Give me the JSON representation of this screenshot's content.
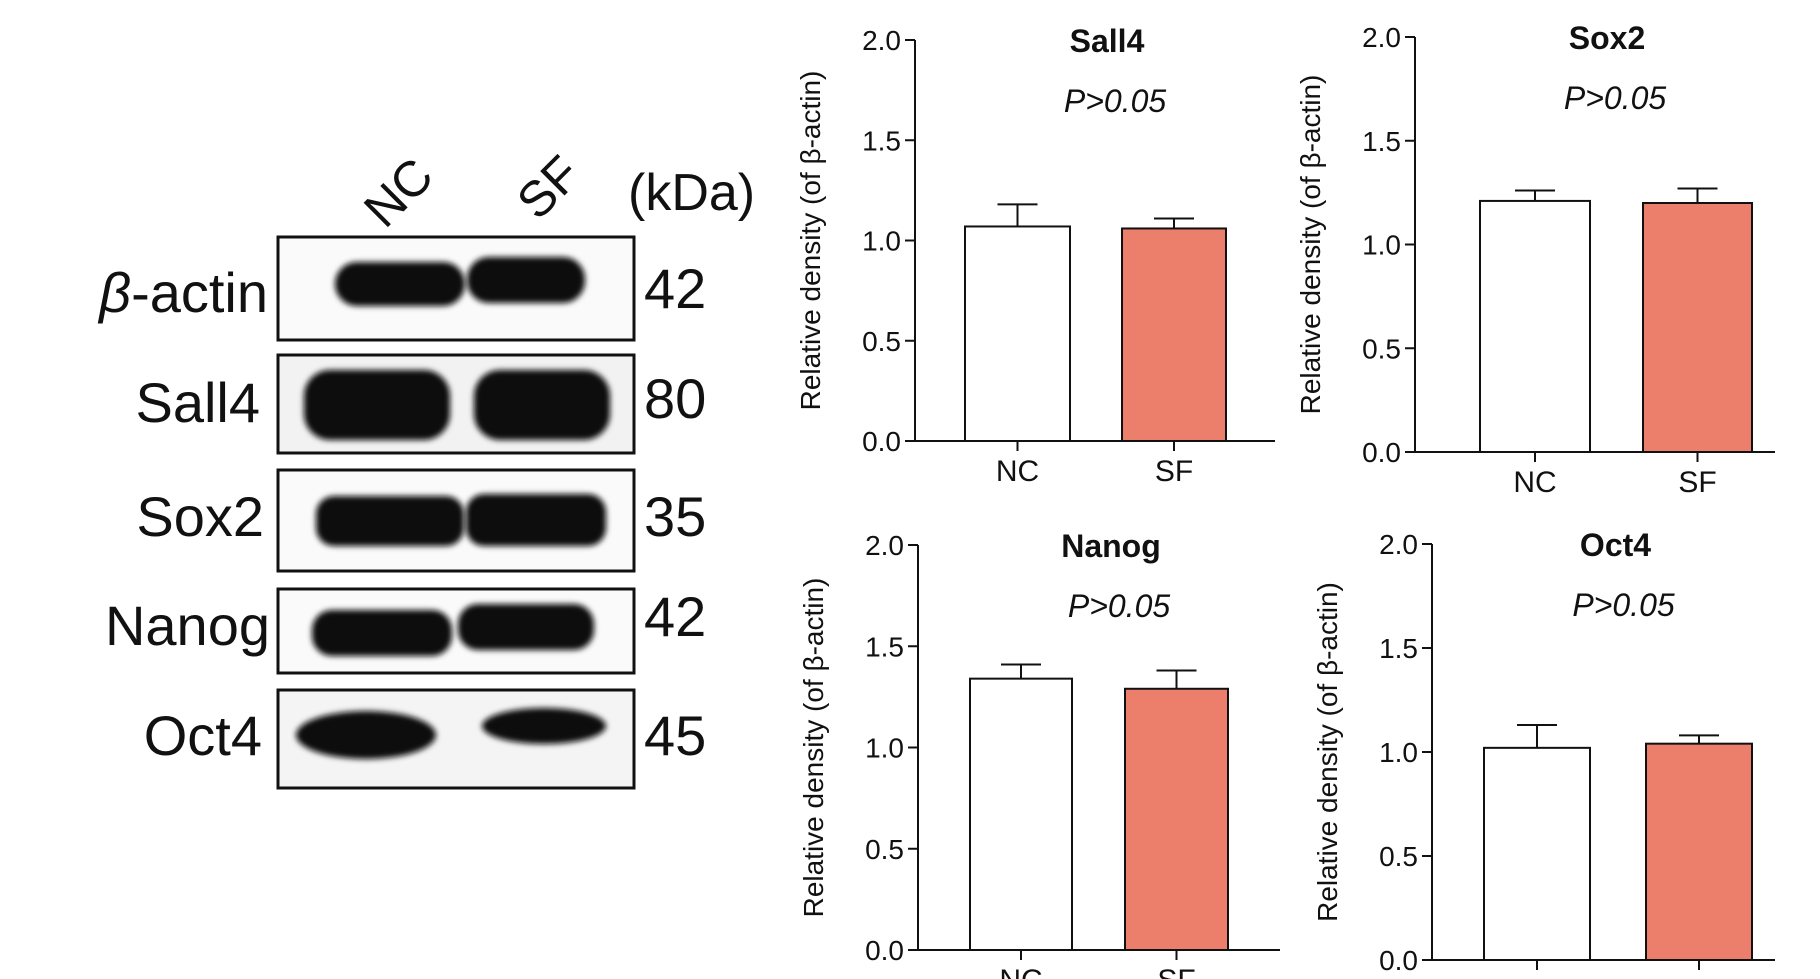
{
  "blot": {
    "columns": [
      "NC",
      "SF"
    ],
    "unit": "(kDa)",
    "rows": [
      {
        "label_pre": "β",
        "label_post": "-actin",
        "kda": "42"
      },
      {
        "label_pre": "",
        "label_post": "Sall4",
        "kda": "80"
      },
      {
        "label_pre": "",
        "label_post": "Sox2",
        "kda": "35"
      },
      {
        "label_pre": "",
        "label_post": "Nanog",
        "kda": "42"
      },
      {
        "label_pre": "",
        "label_post": "Oct4",
        "kda": "45"
      }
    ]
  },
  "chart_data": [
    {
      "type": "bar",
      "title": "Sall4",
      "annotation": "P>0.05",
      "ylabel": "Relative density (of β-actin)",
      "ylim": [
        0,
        2.0
      ],
      "yticks": [
        "0.0",
        "0.5",
        "1.0",
        "1.5",
        "2.0"
      ],
      "categories": [
        "NC",
        "SF"
      ],
      "values": [
        1.07,
        1.06
      ],
      "errors": [
        0.11,
        0.05
      ],
      "colors": [
        "#ffffff",
        "#ec7f6c"
      ]
    },
    {
      "type": "bar",
      "title": "Sox2",
      "annotation": "P>0.05",
      "ylabel": "Relative density (of β-actin)",
      "ylim": [
        0,
        2.0
      ],
      "yticks": [
        "0.0",
        "0.5",
        "1.0",
        "1.5",
        "2.0"
      ],
      "categories": [
        "NC",
        "SF"
      ],
      "values": [
        1.21,
        1.2
      ],
      "errors": [
        0.05,
        0.07
      ],
      "colors": [
        "#ffffff",
        "#ec7f6c"
      ]
    },
    {
      "type": "bar",
      "title": "Nanog",
      "annotation": "P>0.05",
      "ylabel": "Relative density (of β-actin)",
      "ylim": [
        0,
        2.0
      ],
      "yticks": [
        "0.0",
        "0.5",
        "1.0",
        "1.5",
        "2.0"
      ],
      "categories": [
        "NC",
        "SF"
      ],
      "values": [
        1.34,
        1.29
      ],
      "errors": [
        0.07,
        0.09
      ],
      "colors": [
        "#ffffff",
        "#ec7f6c"
      ]
    },
    {
      "type": "bar",
      "title": "Oct4",
      "annotation": "P>0.05",
      "ylabel": "Relative density (of β-actin)",
      "ylim": [
        0,
        2.0
      ],
      "yticks": [
        "0.0",
        "0.5",
        "1.0",
        "1.5",
        "2.0"
      ],
      "categories": [
        "",
        ""
      ],
      "values": [
        1.02,
        1.04
      ],
      "errors": [
        0.11,
        0.04
      ],
      "colors": [
        "#ffffff",
        "#ec7f6c"
      ]
    }
  ]
}
